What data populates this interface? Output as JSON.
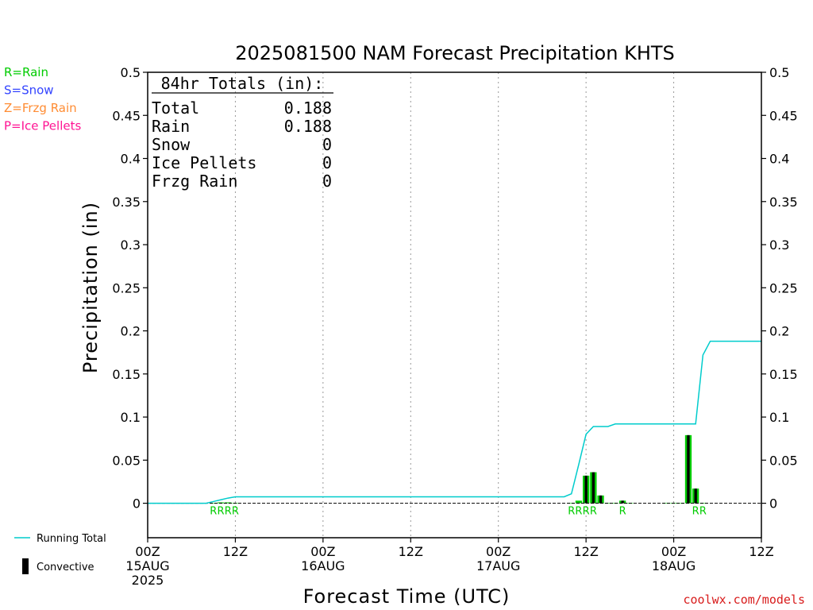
{
  "chart_data": {
    "type": "bar",
    "title": "2025081500 NAM Forecast Precipitation KHTS",
    "xlabel": "Forecast Time (UTC)",
    "ylabel": "Precipitation (in)",
    "ylim": [
      -0.04,
      0.5
    ],
    "xlim_hours": [
      0,
      84
    ],
    "y_ticks": [
      0,
      0.05,
      0.1,
      0.15,
      0.2,
      0.25,
      0.3,
      0.35,
      0.4,
      0.45,
      0.5
    ],
    "y_tick_labels": [
      "0",
      "0.05",
      "0.1",
      "0.15",
      "0.2",
      "0.25",
      "0.3",
      "0.35",
      "0.4",
      "0.45",
      "0.5"
    ],
    "x_ticks": [
      {
        "hour": 0,
        "lines": [
          "00Z",
          "15AUG",
          "2025"
        ]
      },
      {
        "hour": 12,
        "lines": [
          "12Z"
        ]
      },
      {
        "hour": 24,
        "lines": [
          "00Z",
          "16AUG"
        ]
      },
      {
        "hour": 36,
        "lines": [
          "12Z"
        ]
      },
      {
        "hour": 48,
        "lines": [
          "00Z",
          "17AUG"
        ]
      },
      {
        "hour": 60,
        "lines": [
          "12Z"
        ]
      },
      {
        "hour": 72,
        "lines": [
          "00Z",
          "18AUG"
        ]
      },
      {
        "hour": 84,
        "lines": [
          "12Z"
        ]
      }
    ],
    "grid": "vertical dotted at 12-hour ticks",
    "bars_hours": [
      9,
      10,
      11,
      12,
      58,
      59,
      60,
      61,
      62,
      63,
      64,
      65,
      66,
      71,
      72,
      73,
      74,
      75,
      76
    ],
    "bar_values": [
      0.0005,
      0.001,
      0.001,
      0.0005,
      0.0005,
      0.003,
      0.032,
      0.036,
      0.009,
      0.0005,
      0.0005,
      0.003,
      0.0005,
      0.0005,
      0.0005,
      0.0005,
      0.079,
      0.017,
      0.0005
    ],
    "convective_values": [
      0,
      0,
      0,
      0,
      0,
      0,
      0.032,
      0.036,
      0.009,
      0,
      0,
      0.003,
      0,
      0,
      0,
      0,
      0.079,
      0.017,
      0
    ],
    "running_total": {
      "name": "Running Total",
      "x": [
        0,
        7,
        8,
        9,
        10,
        11,
        12,
        57,
        58,
        59,
        60,
        61,
        62,
        63,
        64,
        65,
        66,
        70,
        72,
        75,
        76,
        77,
        84
      ],
      "y": [
        0,
        0,
        0,
        0.002,
        0.004,
        0.006,
        0.0075,
        0.0075,
        0.011,
        0.045,
        0.08,
        0.089,
        0.089,
        0.089,
        0.092,
        0.092,
        0.092,
        0.092,
        0.092,
        0.092,
        0.172,
        0.188,
        0.188
      ]
    },
    "ptype_labels": [
      {
        "hour": 9,
        "text": "R"
      },
      {
        "hour": 10,
        "text": "R"
      },
      {
        "hour": 11,
        "text": "R"
      },
      {
        "hour": 12,
        "text": "R"
      },
      {
        "hour": 58,
        "text": "R"
      },
      {
        "hour": 59,
        "text": "R"
      },
      {
        "hour": 60,
        "text": "R"
      },
      {
        "hour": 61,
        "text": "R"
      },
      {
        "hour": 65,
        "text": "R"
      },
      {
        "hour": 75,
        "text": "R"
      },
      {
        "hour": 76,
        "text": "R"
      }
    ],
    "colors": {
      "rain": "#00cc00",
      "snow": "#3344ff",
      "frzg_rain": "#ff8c33",
      "ice_pellets": "#ff1493",
      "running_total": "#00cccc",
      "convective": "#000000",
      "credit": "#d81b1b"
    }
  },
  "totals": {
    "heading": "84hr Totals (in):",
    "rows": [
      {
        "label": "Total",
        "value": "0.188"
      },
      {
        "label": "Rain",
        "value": "0.188"
      },
      {
        "label": "Snow",
        "value": "0"
      },
      {
        "label": "Ice Pellets",
        "value": "0"
      },
      {
        "label": "Frzg Rain",
        "value": "0"
      }
    ]
  },
  "ptype_legend": [
    {
      "text": "R=Rain",
      "color": "#00cc00"
    },
    {
      "text": "S=Snow",
      "color": "#3344ff"
    },
    {
      "text": "Z=Frzg Rain",
      "color": "#ff8c33"
    },
    {
      "text": "P=Ice Pellets",
      "color": "#ff1493"
    }
  ],
  "line_legend": {
    "running_total_label": "Running Total",
    "convective_label": "Convective"
  },
  "credit": "coolwx.com/models"
}
